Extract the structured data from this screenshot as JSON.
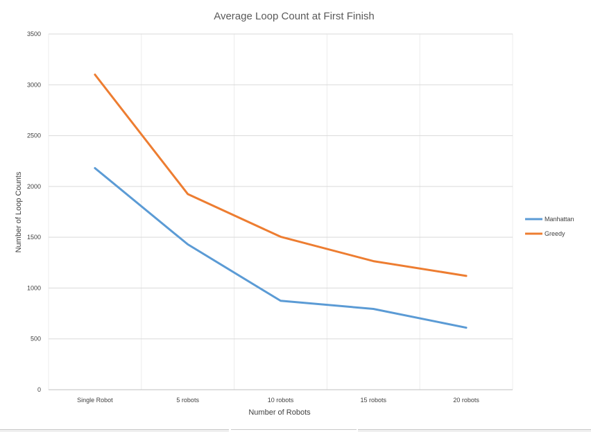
{
  "chart_data": {
    "type": "line",
    "title": "Average Loop Count at First Finish",
    "xlabel": "Number of Robots",
    "ylabel": "Number of Loop Counts",
    "categories": [
      "Single Robot",
      "5 robots",
      "10 robots",
      "15 robots",
      "20 robots"
    ],
    "ylim": [
      0,
      3500
    ],
    "yticks": [
      "0",
      "500",
      "1000",
      "1500",
      "2000",
      "2500",
      "3000",
      "3500"
    ],
    "grid": true,
    "legend_position": "right",
    "series": [
      {
        "name": "Manhattan",
        "color": "#5b9bd5",
        "values": [
          2180,
          1430,
          875,
          795,
          610
        ]
      },
      {
        "name": "Greedy",
        "color": "#ed7d31",
        "values": [
          3100,
          1925,
          1505,
          1265,
          1120
        ]
      }
    ]
  }
}
